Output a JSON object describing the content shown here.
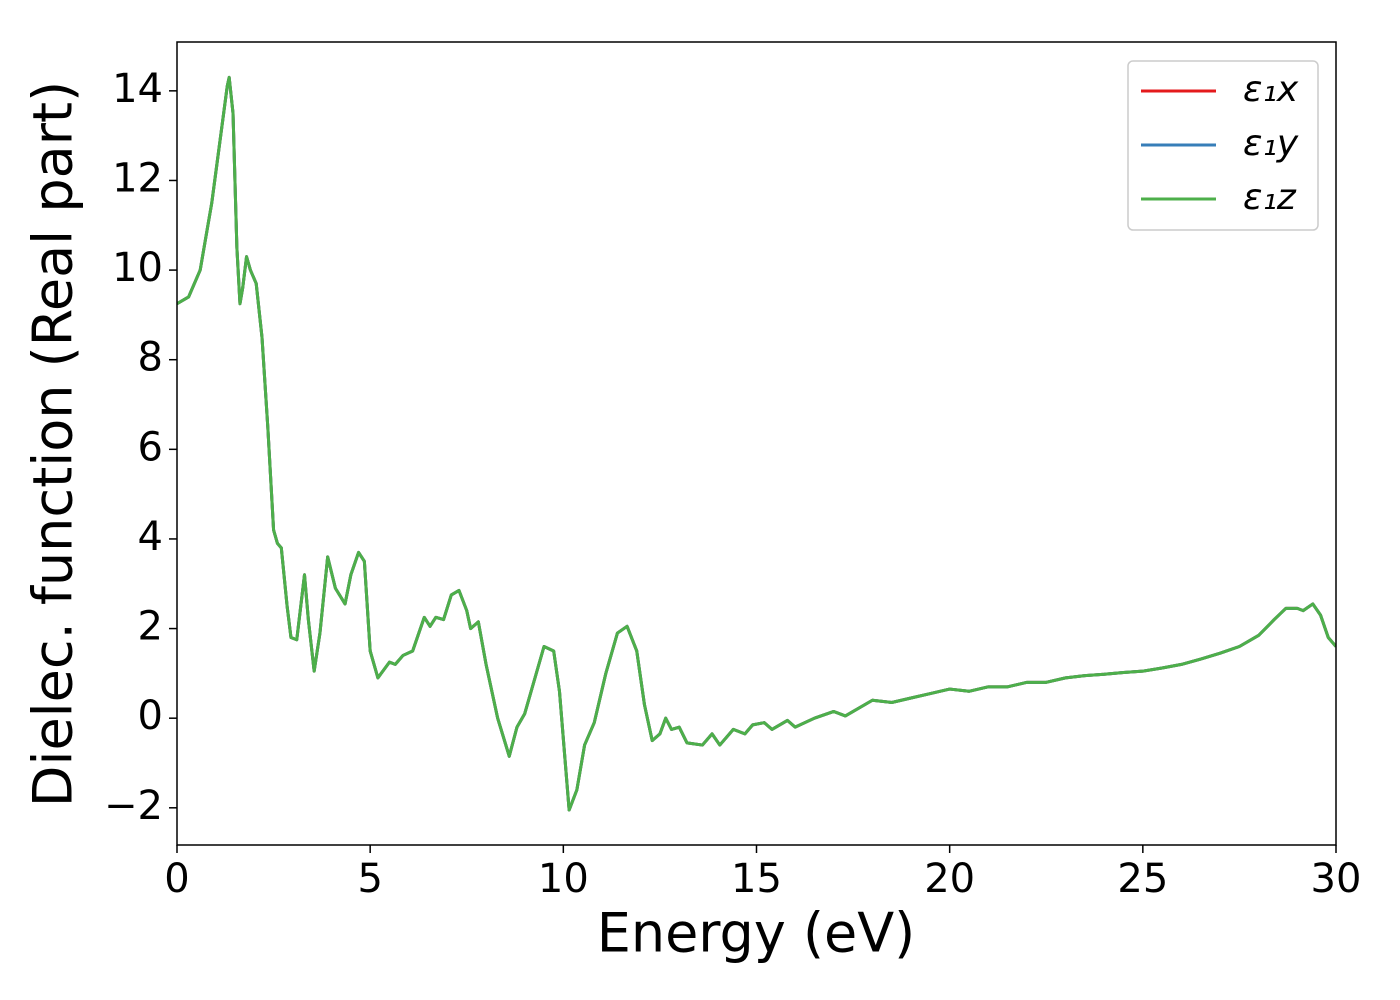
{
  "chart_data": {
    "type": "line",
    "xlabel": "Energy (eV)",
    "ylabel": "Dielec. function (Real part)",
    "xlim": [
      0,
      30
    ],
    "ylim": [
      -2.83,
      15.09
    ],
    "xticks": [
      0,
      5,
      10,
      15,
      20,
      25,
      30
    ],
    "yticks": [
      {
        "value": -2,
        "label": "−2"
      },
      0,
      2,
      4,
      6,
      8,
      10,
      12,
      14
    ],
    "legend": "upper right",
    "x": [
      0,
      0.3,
      0.6,
      0.9,
      1.1,
      1.3,
      1.35,
      1.45,
      1.55,
      1.63,
      1.7,
      1.8,
      1.9,
      2.05,
      2.2,
      2.35,
      2.5,
      2.6,
      2.7,
      2.85,
      2.95,
      3.1,
      3.3,
      3.4,
      3.55,
      3.7,
      3.9,
      4.1,
      4.35,
      4.5,
      4.7,
      4.85,
      5.0,
      5.2,
      5.5,
      5.65,
      5.85,
      6.1,
      6.4,
      6.55,
      6.7,
      6.9,
      7.1,
      7.3,
      7.5,
      7.6,
      7.8,
      8.0,
      8.3,
      8.6,
      8.8,
      9.0,
      9.3,
      9.5,
      9.75,
      9.9,
      10.15,
      10.35,
      10.55,
      10.8,
      11.1,
      11.4,
      11.65,
      11.9,
      12.1,
      12.3,
      12.5,
      12.65,
      12.8,
      13.0,
      13.2,
      13.6,
      13.85,
      14.05,
      14.4,
      14.7,
      14.9,
      15.2,
      15.4,
      15.8,
      16.0,
      16.5,
      17.0,
      17.3,
      18.0,
      18.5,
      19.0,
      19.5,
      20.0,
      20.5,
      21.0,
      21.5,
      22.0,
      22.5,
      23.0,
      23.5,
      24.0,
      24.5,
      25.0,
      25.5,
      26.0,
      26.5,
      27.0,
      27.5,
      28.0,
      28.4,
      28.7,
      29.0,
      29.15,
      29.4,
      29.6,
      29.8,
      30.0
    ],
    "series": [
      {
        "name": "ε₁x",
        "color": "#e41a1c",
        "values": [
          9.25,
          9.4,
          10.0,
          11.5,
          12.8,
          14.1,
          14.3,
          13.5,
          10.5,
          9.25,
          9.6,
          10.3,
          10.0,
          9.7,
          8.5,
          6.5,
          4.2,
          3.9,
          3.8,
          2.5,
          1.8,
          1.75,
          3.2,
          2.2,
          1.05,
          1.9,
          3.6,
          2.9,
          2.55,
          3.2,
          3.7,
          3.5,
          1.5,
          0.9,
          1.25,
          1.2,
          1.4,
          1.5,
          2.25,
          2.05,
          2.25,
          2.2,
          2.75,
          2.85,
          2.4,
          2.0,
          2.15,
          1.2,
          0.0,
          -0.85,
          -0.2,
          0.1,
          1.0,
          1.6,
          1.5,
          0.6,
          -2.05,
          -1.6,
          -0.6,
          -0.1,
          1.0,
          1.9,
          2.05,
          1.5,
          0.3,
          -0.5,
          -0.35,
          0.0,
          -0.25,
          -0.2,
          -0.55,
          -0.6,
          -0.35,
          -0.6,
          -0.25,
          -0.35,
          -0.15,
          -0.1,
          -0.25,
          -0.05,
          -0.2,
          0.0,
          0.15,
          0.05,
          0.4,
          0.35,
          0.45,
          0.55,
          0.65,
          0.6,
          0.7,
          0.7,
          0.8,
          0.8,
          0.9,
          0.95,
          0.98,
          1.02,
          1.05,
          1.12,
          1.2,
          1.32,
          1.45,
          1.6,
          1.85,
          2.2,
          2.45,
          2.45,
          2.4,
          2.55,
          2.3,
          1.8,
          1.6
        ]
      },
      {
        "name": "ε₁y",
        "color": "#377eb8",
        "values": [
          9.25,
          9.4,
          10.0,
          11.5,
          12.8,
          14.1,
          14.3,
          13.5,
          10.5,
          9.25,
          9.6,
          10.3,
          10.0,
          9.7,
          8.5,
          6.5,
          4.2,
          3.9,
          3.8,
          2.5,
          1.8,
          1.75,
          3.2,
          2.2,
          1.05,
          1.9,
          3.6,
          2.9,
          2.55,
          3.2,
          3.7,
          3.5,
          1.5,
          0.9,
          1.25,
          1.2,
          1.4,
          1.5,
          2.25,
          2.05,
          2.25,
          2.2,
          2.75,
          2.85,
          2.4,
          2.0,
          2.15,
          1.2,
          0.0,
          -0.85,
          -0.2,
          0.1,
          1.0,
          1.6,
          1.5,
          0.6,
          -2.05,
          -1.6,
          -0.6,
          -0.1,
          1.0,
          1.9,
          2.05,
          1.5,
          0.3,
          -0.5,
          -0.35,
          0.0,
          -0.25,
          -0.2,
          -0.55,
          -0.6,
          -0.35,
          -0.6,
          -0.25,
          -0.35,
          -0.15,
          -0.1,
          -0.25,
          -0.05,
          -0.2,
          0.0,
          0.15,
          0.05,
          0.4,
          0.35,
          0.45,
          0.55,
          0.65,
          0.6,
          0.7,
          0.7,
          0.8,
          0.8,
          0.9,
          0.95,
          0.98,
          1.02,
          1.05,
          1.12,
          1.2,
          1.32,
          1.45,
          1.6,
          1.85,
          2.2,
          2.45,
          2.45,
          2.4,
          2.55,
          2.3,
          1.8,
          1.6
        ]
      },
      {
        "name": "ε₁z",
        "color": "#4daf4a",
        "values": [
          9.25,
          9.4,
          10.0,
          11.5,
          12.8,
          14.1,
          14.3,
          13.5,
          10.5,
          9.25,
          9.6,
          10.3,
          10.0,
          9.7,
          8.5,
          6.5,
          4.2,
          3.9,
          3.8,
          2.5,
          1.8,
          1.75,
          3.2,
          2.2,
          1.05,
          1.9,
          3.6,
          2.9,
          2.55,
          3.2,
          3.7,
          3.5,
          1.5,
          0.9,
          1.25,
          1.2,
          1.4,
          1.5,
          2.25,
          2.05,
          2.25,
          2.2,
          2.75,
          2.85,
          2.4,
          2.0,
          2.15,
          1.2,
          0.0,
          -0.85,
          -0.2,
          0.1,
          1.0,
          1.6,
          1.5,
          0.6,
          -2.05,
          -1.6,
          -0.6,
          -0.1,
          1.0,
          1.9,
          2.05,
          1.5,
          0.3,
          -0.5,
          -0.35,
          0.0,
          -0.25,
          -0.2,
          -0.55,
          -0.6,
          -0.35,
          -0.6,
          -0.25,
          -0.35,
          -0.15,
          -0.1,
          -0.25,
          -0.05,
          -0.2,
          0.0,
          0.15,
          0.05,
          0.4,
          0.35,
          0.45,
          0.55,
          0.65,
          0.6,
          0.7,
          0.7,
          0.8,
          0.8,
          0.9,
          0.95,
          0.98,
          1.02,
          1.05,
          1.12,
          1.2,
          1.32,
          1.45,
          1.6,
          1.85,
          2.2,
          2.45,
          2.45,
          2.4,
          2.55,
          2.3,
          1.8,
          1.6
        ]
      }
    ]
  }
}
